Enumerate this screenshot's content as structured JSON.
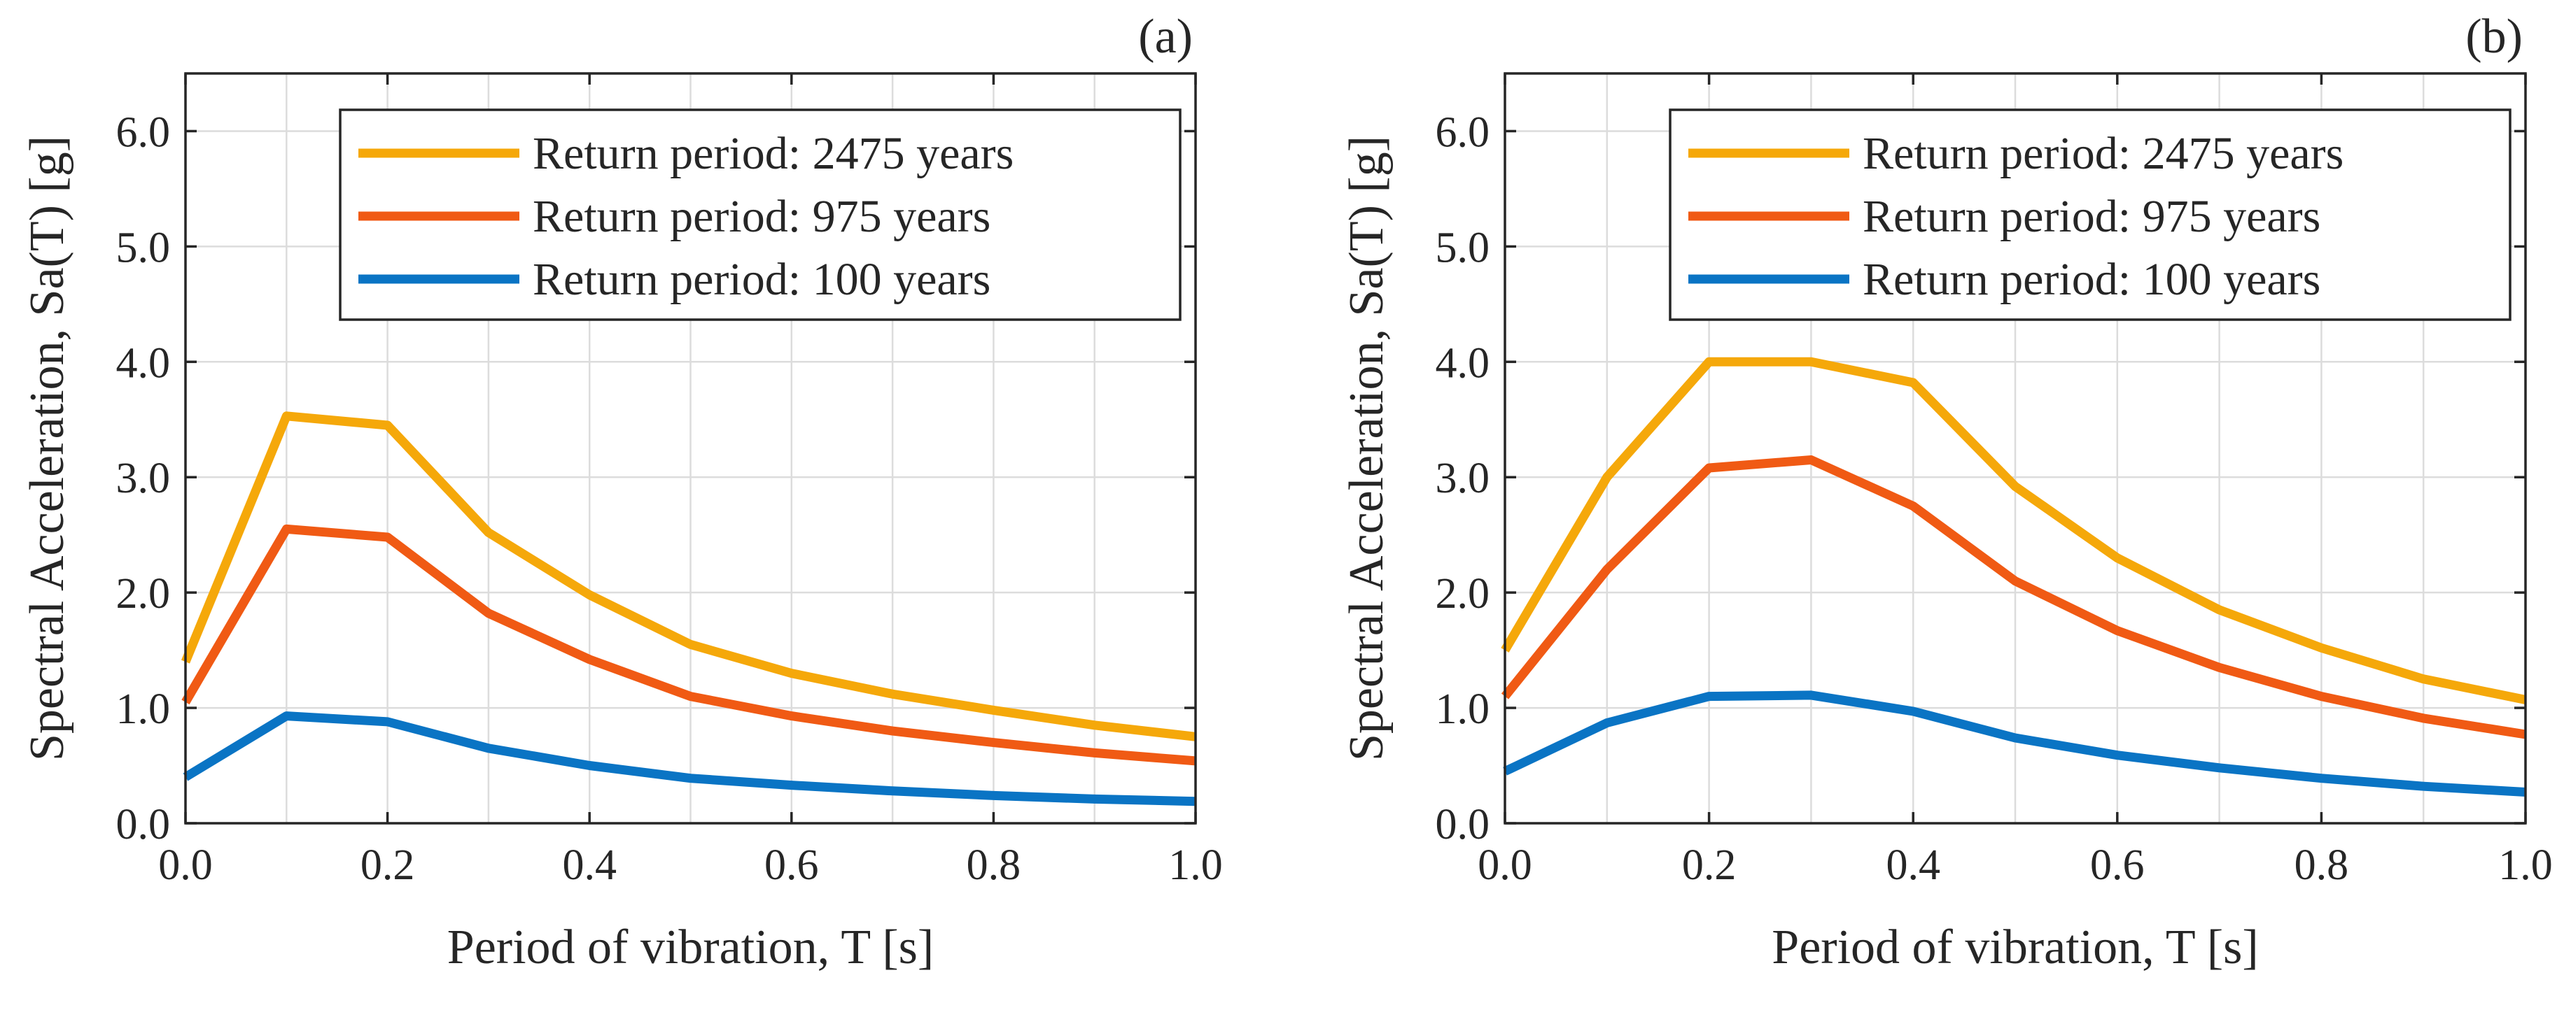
{
  "colors": {
    "rp_2475": "#F5A80A",
    "rp_975": "#F05A14",
    "rp_100": "#0A74C4",
    "grid": "#DCDCDC",
    "axes": "#262626"
  },
  "chart_data": [
    {
      "type": "line",
      "panel_label": "(a)",
      "xlabel": "Period of vibration, T [s]",
      "ylabel": "Spectral Acceleration, Sa(T) [g]",
      "xlim": [
        0,
        1
      ],
      "ylim": [
        0,
        6.5
      ],
      "xticks": [
        0,
        0.2,
        0.4,
        0.6,
        0.8,
        1.0
      ],
      "xtick_labels": [
        "0.0",
        "0.2",
        "0.4",
        "0.6",
        "0.8",
        "1.0"
      ],
      "xgrid": [
        0,
        0.1,
        0.2,
        0.3,
        0.4,
        0.5,
        0.6,
        0.7,
        0.8,
        0.9,
        1.0
      ],
      "yticks": [
        0,
        1,
        2,
        3,
        4,
        5,
        6
      ],
      "ytick_labels": [
        "0.0",
        "1.0",
        "2.0",
        "3.0",
        "4.0",
        "5.0",
        "6.0"
      ],
      "grid": true,
      "legend_position": "top-right",
      "x": [
        0,
        0.1,
        0.2,
        0.3,
        0.4,
        0.5,
        0.6,
        0.7,
        0.8,
        0.9,
        1.0
      ],
      "series": [
        {
          "name": "Return period: 2475 years",
          "color_key": "rp_2475",
          "values": [
            1.4,
            3.53,
            3.45,
            2.52,
            1.98,
            1.55,
            1.3,
            1.12,
            0.98,
            0.85,
            0.75
          ]
        },
        {
          "name": "Return period: 975 years",
          "color_key": "rp_975",
          "values": [
            1.05,
            2.55,
            2.48,
            1.82,
            1.42,
            1.1,
            0.93,
            0.8,
            0.7,
            0.61,
            0.54
          ]
        },
        {
          "name": "Return period: 100 years",
          "color_key": "rp_100",
          "values": [
            0.4,
            0.93,
            0.88,
            0.65,
            0.5,
            0.39,
            0.33,
            0.28,
            0.24,
            0.21,
            0.19
          ]
        }
      ]
    },
    {
      "type": "line",
      "panel_label": "(b)",
      "xlabel": "Period of vibration, T [s]",
      "ylabel": "Spectral Acceleration, Sa(T) [g]",
      "xlim": [
        0,
        1
      ],
      "ylim": [
        0,
        6.5
      ],
      "xticks": [
        0,
        0.2,
        0.4,
        0.6,
        0.8,
        1.0
      ],
      "xtick_labels": [
        "0.0",
        "0.2",
        "0.4",
        "0.6",
        "0.8",
        "1.0"
      ],
      "xgrid": [
        0,
        0.1,
        0.2,
        0.3,
        0.4,
        0.5,
        0.6,
        0.7,
        0.8,
        0.9,
        1.0
      ],
      "yticks": [
        0,
        1,
        2,
        3,
        4,
        5,
        6
      ],
      "ytick_labels": [
        "0.0",
        "1.0",
        "2.0",
        "3.0",
        "4.0",
        "5.0",
        "6.0"
      ],
      "grid": true,
      "legend_position": "top-right",
      "x": [
        0,
        0.1,
        0.2,
        0.3,
        0.4,
        0.5,
        0.6,
        0.7,
        0.8,
        0.9,
        1.0
      ],
      "series": [
        {
          "name": "Return period: 2475 years",
          "color_key": "rp_2475",
          "values": [
            1.5,
            3.0,
            4.0,
            4.0,
            3.82,
            2.92,
            2.3,
            1.85,
            1.52,
            1.25,
            1.07
          ]
        },
        {
          "name": "Return period: 975 years",
          "color_key": "rp_975",
          "values": [
            1.1,
            2.2,
            3.08,
            3.15,
            2.75,
            2.1,
            1.67,
            1.35,
            1.1,
            0.91,
            0.77
          ]
        },
        {
          "name": "Return period: 100 years",
          "color_key": "rp_100",
          "values": [
            0.45,
            0.87,
            1.1,
            1.11,
            0.97,
            0.74,
            0.59,
            0.48,
            0.39,
            0.32,
            0.27
          ]
        }
      ]
    }
  ]
}
